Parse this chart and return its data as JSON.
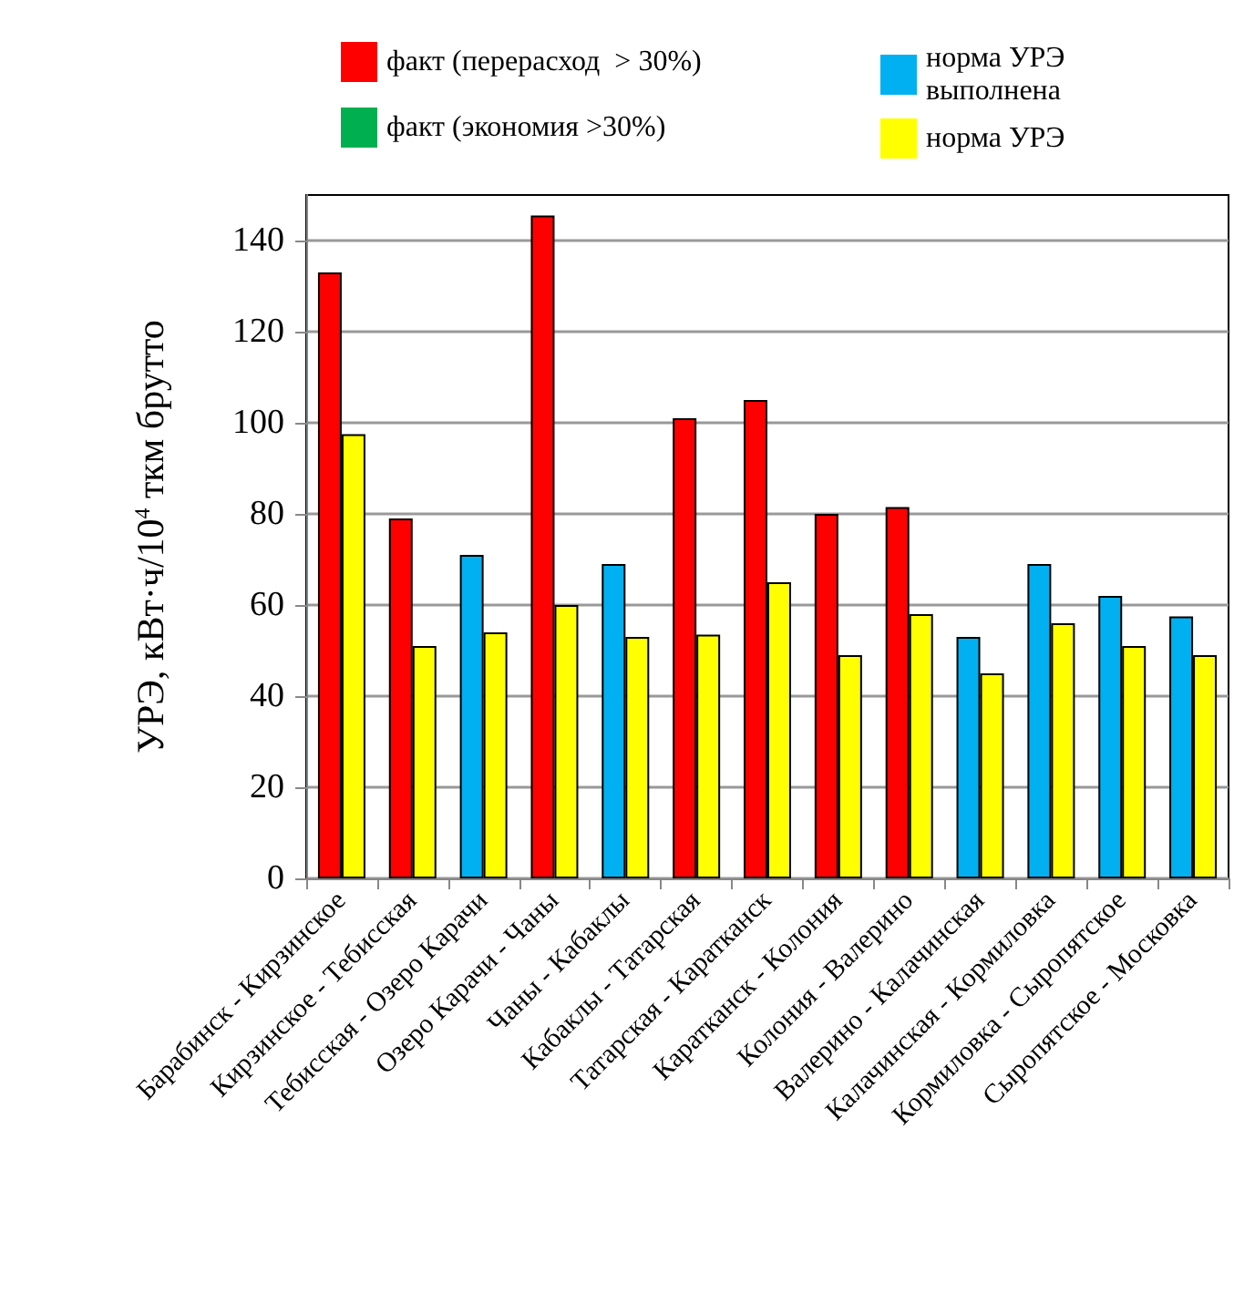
{
  "chart_data": {
    "type": "bar",
    "ylabel": "УРЭ, кВт·ч/10$^{4}$ ткм брутто",
    "categories": [
      "Барабинск - Кирзинское",
      "Кирзинское - Тебисская",
      "Тебисская - Озеро Карачи",
      "Озеро Карачи - Чаны",
      "Чаны - Кабаклы",
      "Кабаклы - Татарская",
      "Татарская - Каратканск",
      "Каратканск - Колония",
      "Колония - Валерино",
      "Валерино - Калачинская",
      "Калачинская - Кормиловка",
      "Кормиловка - Сыропятское",
      "Сыропятское - Московка"
    ],
    "series": [
      {
        "name": "факт (перерасход  > 30%)",
        "color": "#ff0000",
        "values": [
          133,
          79,
          null,
          145.5,
          null,
          101,
          105,
          80,
          81.5,
          null,
          null,
          null,
          null
        ]
      },
      {
        "name": "норма УРЭ выполнена",
        "color": "#00b0f0",
        "values": [
          null,
          null,
          71,
          null,
          69,
          null,
          null,
          null,
          null,
          53,
          69,
          62,
          57.5
        ]
      },
      {
        "name": "факт (экономия >30%)",
        "color": "#00b050",
        "values": [
          null,
          null,
          null,
          null,
          null,
          null,
          null,
          null,
          null,
          null,
          null,
          null,
          null
        ]
      },
      {
        "name": "норма УРЭ",
        "color": "#ffff00",
        "values": [
          97.5,
          51,
          54,
          60,
          53,
          53.5,
          65,
          49,
          58,
          45,
          56,
          51,
          49
        ]
      }
    ],
    "ylim": [
      0,
      150
    ],
    "yticks": [
      0,
      20,
      40,
      60,
      80,
      100,
      120,
      140
    ],
    "grid": "y",
    "legend": "top"
  }
}
